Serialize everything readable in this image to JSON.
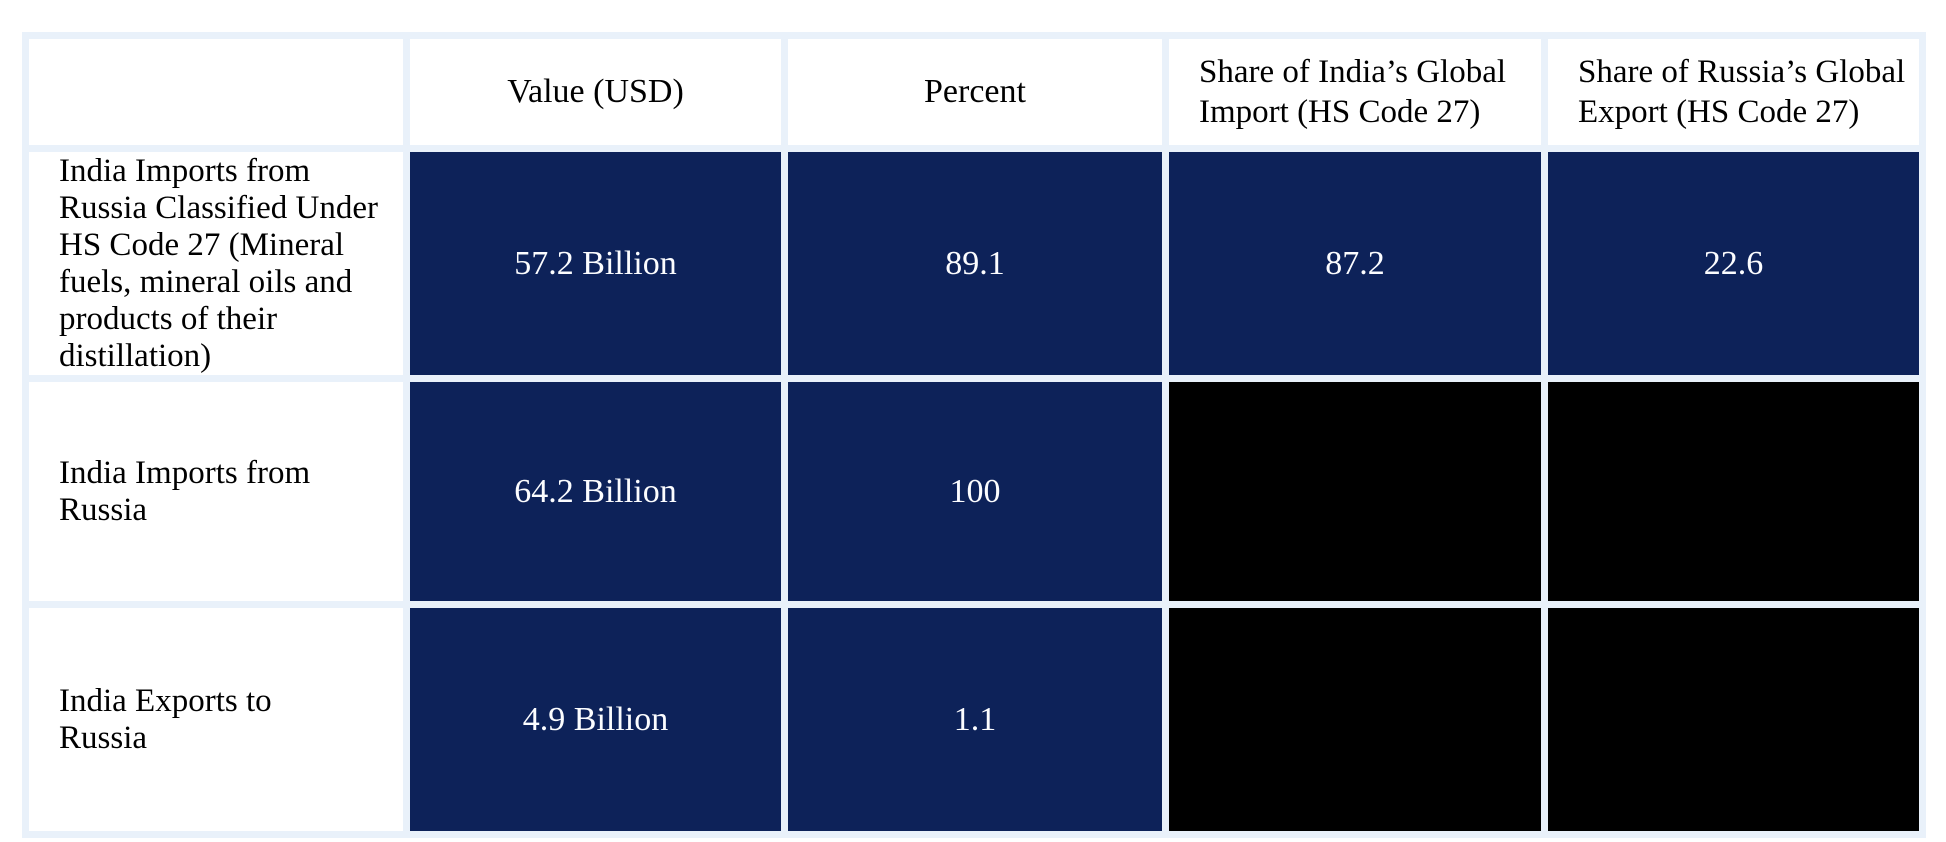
{
  "chart_data": {
    "type": "table",
    "columns": [
      "",
      "Value (USD)",
      "Percent",
      "Share of India’s Global Import (HS Code 27)",
      "Share of Russia’s Global Export (HS Code 27)"
    ],
    "rows": [
      [
        "India Imports from Russia Classified Under HS Code 27 (Mineral fuels, mineral oils and products of their distillation)",
        "57.2 Billion",
        "89.1",
        "87.2",
        "22.6"
      ],
      [
        "India Imports from Russia",
        "64.2 Billion",
        "100",
        "",
        ""
      ],
      [
        "India Exports to Russia",
        "4.9 Billion",
        "1.1",
        "",
        ""
      ]
    ],
    "layout": {
      "legend": "none",
      "grid": "light-blue cell borders",
      "empty_cells_filled_black": [
        [
          1,
          3
        ],
        [
          1,
          4
        ],
        [
          2,
          3
        ],
        [
          2,
          4
        ]
      ]
    }
  },
  "colors": {
    "value_cell_navy": "#0d2259",
    "empty_cell_black": "#000000",
    "grid_border": "#e9f1fa",
    "header_text": "#000000",
    "row_label_text": "#000000",
    "value_text": "#fcfdff",
    "page_background": "#ffffff"
  }
}
